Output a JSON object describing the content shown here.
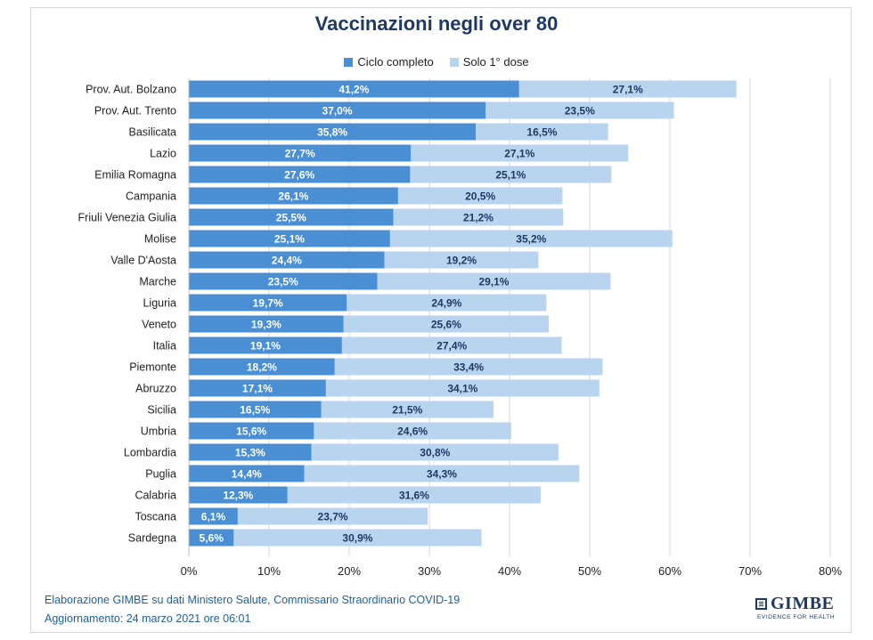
{
  "chart_data": {
    "type": "bar",
    "orientation": "horizontal",
    "stacked": true,
    "title": "Vaccinazioni negli over 80",
    "categories": [
      "Prov. Aut. Bolzano",
      "Prov. Aut. Trento",
      "Basilicata",
      "Lazio",
      "Emilia Romagna",
      "Campania",
      "Friuli Venezia Giulia",
      "Molise",
      "Valle D'Aosta",
      "Marche",
      "Liguria",
      "Veneto",
      "Italia",
      "Piemonte",
      "Abruzzo",
      "Sicilia",
      "Umbria",
      "Lombardia",
      "Puglia",
      "Calabria",
      "Toscana",
      "Sardegna"
    ],
    "series": [
      {
        "name": "Ciclo completo",
        "color": "#4a8fd4",
        "label_color": "#ffffff",
        "values": [
          41.2,
          37.0,
          35.8,
          27.7,
          27.6,
          26.1,
          25.5,
          25.1,
          24.4,
          23.5,
          19.7,
          19.3,
          19.1,
          18.2,
          17.1,
          16.5,
          15.6,
          15.3,
          14.4,
          12.3,
          6.1,
          5.6
        ],
        "labels": [
          "41,2%",
          "37,0%",
          "35,8%",
          "27,7%",
          "27,6%",
          "26,1%",
          "25,5%",
          "25,1%",
          "24,4%",
          "23,5%",
          "19,7%",
          "19,3%",
          "19,1%",
          "18,2%",
          "17,1%",
          "16,5%",
          "15,6%",
          "15,3%",
          "14,4%",
          "12,3%",
          "6,1%",
          "5,6%"
        ]
      },
      {
        "name": "Solo 1° dose",
        "color": "#b9d4ee",
        "label_color": "#1f3864",
        "values": [
          27.1,
          23.5,
          16.5,
          27.1,
          25.1,
          20.5,
          21.2,
          35.2,
          19.2,
          29.1,
          24.9,
          25.6,
          27.4,
          33.4,
          34.1,
          21.5,
          24.6,
          30.8,
          34.3,
          31.6,
          23.7,
          30.9
        ],
        "labels": [
          "27,1%",
          "23,5%",
          "16,5%",
          "27,1%",
          "25,1%",
          "20,5%",
          "21,2%",
          "35,2%",
          "19,2%",
          "29,1%",
          "24,9%",
          "25,6%",
          "27,4%",
          "33,4%",
          "34,1%",
          "21,5%",
          "24,6%",
          "30,8%",
          "34,3%",
          "31,6%",
          "23,7%",
          "30,9%"
        ]
      }
    ],
    "xlim": [
      0,
      80
    ],
    "xticks": [
      0,
      10,
      20,
      30,
      40,
      50,
      60,
      70,
      80
    ],
    "xtick_labels": [
      "0%",
      "10%",
      "20%",
      "30%",
      "40%",
      "50%",
      "60%",
      "70%",
      "80%"
    ],
    "grid": "vertical",
    "legend_position": "top"
  },
  "footer": {
    "source": "Elaborazione GIMBE su dati Ministero Salute, Commissario Straordinario COVID-19",
    "updated": "Aggiornamento:  24 marzo 2021 ore 06:01"
  },
  "logo": {
    "name": "GIMBE",
    "tagline": "EVIDENCE FOR HEALTH"
  }
}
